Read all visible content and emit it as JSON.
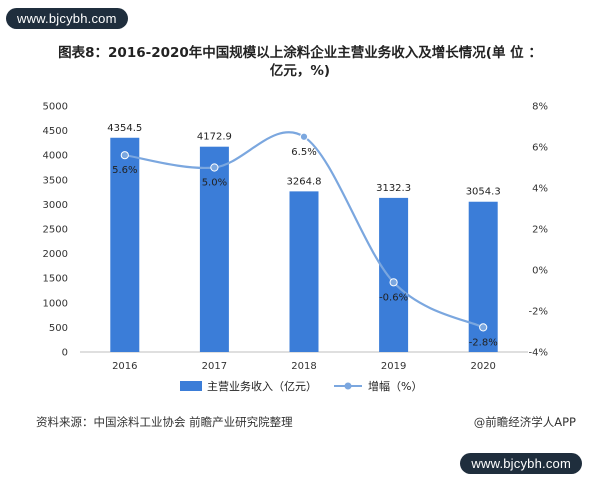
{
  "watermark_top": "www.bjcybh.com",
  "watermark_bottom": "www.bjcybh.com",
  "title_line1": "图表8：2016-2020年中国规模以上涂料企业主营业务收入及增长情况(单 位 ：",
  "title_line2": "亿元，%)",
  "source": "资料来源：中国涂料工业协会 前瞻产业研究院整理",
  "credit": "@前瞻经济学人APP",
  "colors": {
    "bar": "#3b7dd8",
    "line": "#7ba7df",
    "text": "#222222"
  },
  "chart_data": {
    "type": "bar",
    "categories": [
      "2016",
      "2017",
      "2018",
      "2019",
      "2020"
    ],
    "series": [
      {
        "name": "主营业务收入（亿元）",
        "type": "bar",
        "axis": "left",
        "values": [
          4354.5,
          4172.9,
          3264.8,
          3132.3,
          3054.3
        ],
        "labels": [
          "4354.5",
          "4172.9",
          "3264.8",
          "3132.3",
          "3054.3"
        ]
      },
      {
        "name": "增幅（%）",
        "type": "line",
        "axis": "right",
        "values": [
          5.6,
          5.0,
          6.5,
          -0.6,
          -2.8
        ],
        "labels": [
          "5.6%",
          "5.0%",
          "6.5%",
          "-0.6%",
          "-2.8%"
        ]
      }
    ],
    "y_left": {
      "min": 0,
      "max": 5000,
      "ticks": [
        "0",
        "500",
        "1000",
        "1500",
        "2000",
        "2500",
        "3000",
        "3500",
        "4000",
        "4500",
        "5000"
      ]
    },
    "y_right": {
      "min": -4,
      "max": 8,
      "ticks": [
        "-4%",
        "-2%",
        "0%",
        "2%",
        "4%",
        "6%",
        "8%"
      ]
    },
    "grid": false,
    "legend_position": "bottom"
  }
}
